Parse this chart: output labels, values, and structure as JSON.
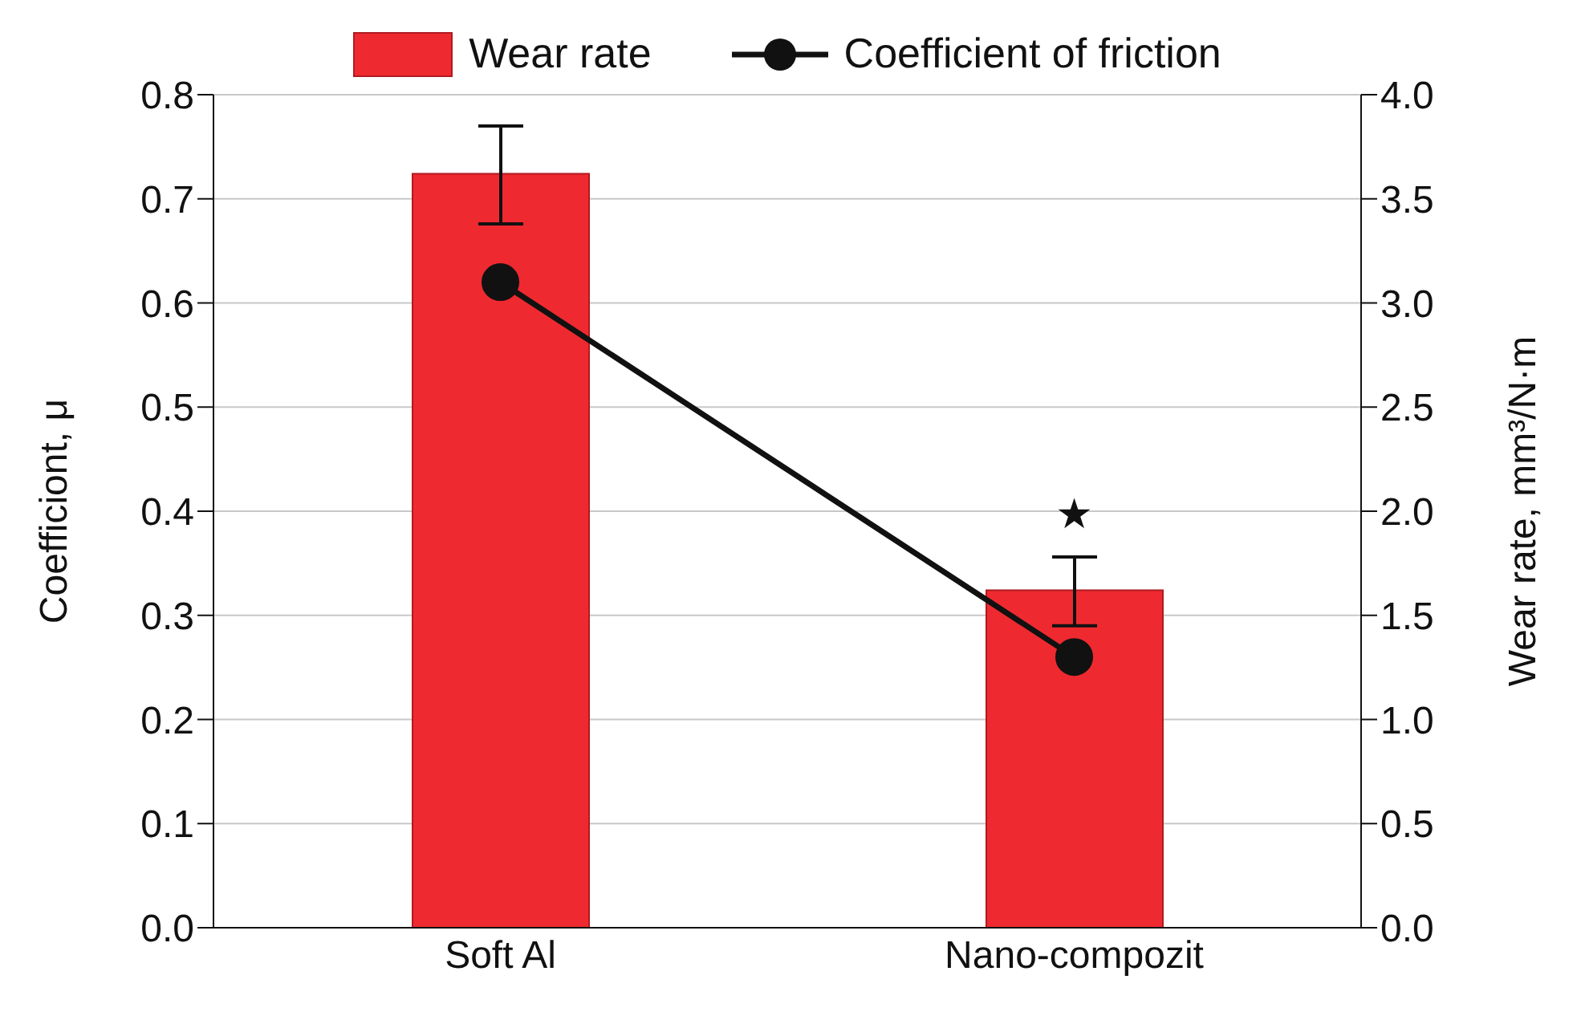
{
  "chart_data": {
    "type": "bar",
    "categories": [
      "Soft Al",
      "Nano-compozit"
    ],
    "series": [
      {
        "name": "Wear rate",
        "axis": "y2",
        "color": "#ee2a30",
        "values": [
          3.62,
          1.62
        ],
        "errors": [
          [
            3.38,
            3.85
          ],
          [
            1.45,
            1.78
          ]
        ]
      },
      {
        "name": "Coefficient of friction",
        "type": "line",
        "axis": "y",
        "color": "#111111",
        "values": [
          0.62,
          0.26
        ],
        "marker": "circle"
      }
    ],
    "ylabel": "Coefficiont, μ",
    "y2label": "Wear rate, mm³/N·m",
    "ylim": [
      0,
      0.8
    ],
    "yticks": [
      {
        "value": 0,
        "label": "0.0"
      },
      0.1,
      0.2,
      0.3,
      0.4,
      0.5,
      0.6,
      0.7,
      0.8
    ],
    "y2lim": [
      0,
      4
    ],
    "y2ticks": [
      {
        "value": 0,
        "label": "0.0"
      },
      {
        "value": 0.5,
        "label": "0.5"
      },
      {
        "value": 1,
        "label": "1.0"
      },
      {
        "value": 1.5,
        "label": "1.5"
      },
      {
        "value": 2,
        "label": "2.0"
      },
      {
        "value": 2.5,
        "label": "2.5"
      },
      {
        "value": 3,
        "label": "3.0"
      },
      {
        "value": 3.5,
        "label": "3.5"
      },
      {
        "value": 4,
        "label": "4.0"
      }
    ],
    "annotations": [
      "★"
    ],
    "grid": "y",
    "legend": "top"
  }
}
